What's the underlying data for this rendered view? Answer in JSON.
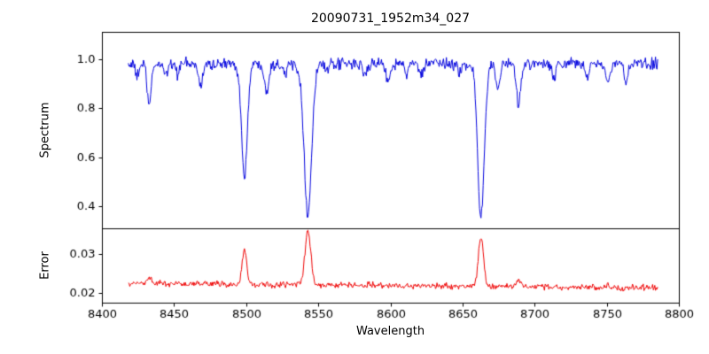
{
  "chart_data": {
    "type": "line",
    "title": "20090731_1952m34_027",
    "xlabel": "Wavelength",
    "xlim": [
      8400,
      8800
    ],
    "x_ticks": [
      8400,
      8450,
      8500,
      8550,
      8600,
      8650,
      8700,
      8750,
      8800
    ],
    "x_tick_labels": [
      "8400",
      "8450",
      "8500",
      "8550",
      "8600",
      "8650",
      "8700",
      "8750",
      "8800"
    ],
    "x_start": 8418,
    "x_end": 8785,
    "x_step": 0.5,
    "grid": false,
    "legend": "none",
    "panels": [
      {
        "name": "spectrum",
        "ylabel": "Spectrum",
        "color": "#0000dd",
        "ylim": [
          0.31,
          1.11
        ],
        "y_ticks": [
          0.4,
          0.6,
          0.8,
          1.0
        ],
        "y_tick_labels": [
          "0.4",
          "0.6",
          "0.8",
          "1.0"
        ],
        "continuum": 0.98,
        "noise_amplitude": 0.012,
        "absorption_lines": [
          {
            "c": 8424.0,
            "d": 0.05,
            "w": 1.2
          },
          {
            "c": 8432.5,
            "d": 0.17,
            "w": 1.4
          },
          {
            "c": 8444.0,
            "d": 0.04,
            "w": 1.2
          },
          {
            "c": 8452.0,
            "d": 0.04,
            "w": 1.0
          },
          {
            "c": 8468.0,
            "d": 0.09,
            "w": 1.4
          },
          {
            "c": 8498.5,
            "d": 0.46,
            "w": 2.0
          },
          {
            "c": 8514.0,
            "d": 0.11,
            "w": 1.4
          },
          {
            "c": 8527.0,
            "d": 0.04,
            "w": 1.0
          },
          {
            "c": 8542.5,
            "d": 0.61,
            "w": 2.6
          },
          {
            "c": 8556.0,
            "d": 0.04,
            "w": 1.0
          },
          {
            "c": 8582.0,
            "d": 0.05,
            "w": 1.2
          },
          {
            "c": 8598.0,
            "d": 0.07,
            "w": 1.2
          },
          {
            "c": 8611.0,
            "d": 0.04,
            "w": 1.0
          },
          {
            "c": 8621.0,
            "d": 0.05,
            "w": 1.2
          },
          {
            "c": 8648.0,
            "d": 0.04,
            "w": 1.0
          },
          {
            "c": 8662.5,
            "d": 0.62,
            "w": 2.3
          },
          {
            "c": 8674.5,
            "d": 0.11,
            "w": 1.4
          },
          {
            "c": 8688.5,
            "d": 0.16,
            "w": 1.5
          },
          {
            "c": 8713.0,
            "d": 0.06,
            "w": 1.2
          },
          {
            "c": 8736.0,
            "d": 0.05,
            "w": 1.1
          },
          {
            "c": 8750.5,
            "d": 0.09,
            "w": 1.3
          },
          {
            "c": 8763.0,
            "d": 0.07,
            "w": 1.2
          }
        ]
      },
      {
        "name": "error",
        "ylabel": "Error",
        "color": "#ee0000",
        "ylim": [
          0.0175,
          0.0366
        ],
        "y_ticks": [
          0.02,
          0.03
        ],
        "y_tick_labels": [
          "0.02",
          "0.03"
        ],
        "baseline_start": 0.0226,
        "baseline_end": 0.0214,
        "noise_amplitude": 0.0004,
        "peaks": [
          {
            "c": 8432.5,
            "h": 0.0015,
            "w": 1.4
          },
          {
            "c": 8498.5,
            "h": 0.0085,
            "w": 1.6
          },
          {
            "c": 8542.5,
            "h": 0.014,
            "w": 2.0
          },
          {
            "c": 8662.5,
            "h": 0.0125,
            "w": 1.8
          },
          {
            "c": 8688.5,
            "h": 0.0018,
            "w": 1.4
          },
          {
            "c": 8750.5,
            "h": 0.0008,
            "w": 1.2
          }
        ]
      }
    ]
  }
}
